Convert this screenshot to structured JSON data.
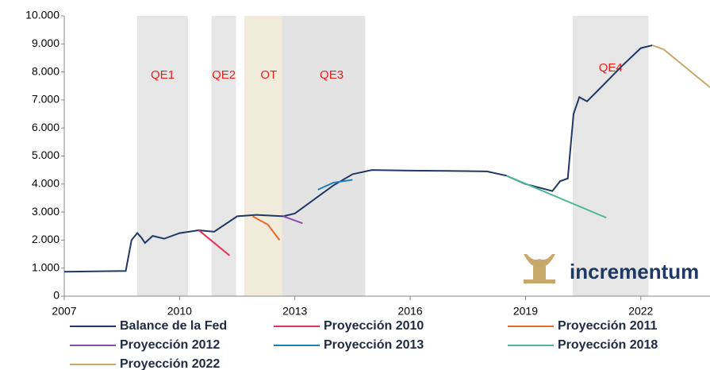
{
  "chart_data": {
    "type": "line",
    "xlim": [
      2007,
      2023.8
    ],
    "xticks": [
      2007,
      2010,
      2013,
      2016,
      2019,
      2022
    ],
    "ylim": [
      0,
      10000
    ],
    "yticks": [
      0,
      {
        "value": 1000,
        "label": "1.000"
      },
      {
        "value": 2000,
        "label": "2.000"
      },
      {
        "value": 3000,
        "label": "3.000"
      },
      {
        "value": 4000,
        "label": "4.000"
      },
      {
        "value": 5000,
        "label": "5.000"
      },
      {
        "value": 6000,
        "label": "6.000"
      },
      {
        "value": 7000,
        "label": "7.000"
      },
      {
        "value": 8000,
        "label": "8.000"
      },
      {
        "value": 9000,
        "label": "9.000"
      },
      {
        "value": 10000,
        "label": "10.000"
      }
    ],
    "regions": [
      {
        "label": "QE1",
        "start": 2008.9,
        "end": 2010.22,
        "color": "#e6e6e6"
      },
      {
        "label": "QE2",
        "start": 2010.83,
        "end": 2011.47,
        "color": "#e6e6e6"
      },
      {
        "label": "OT",
        "start": 2011.68,
        "end": 2012.96,
        "color": "#f1ebdc"
      },
      {
        "label": "QE3",
        "start": 2012.67,
        "end": 2014.83,
        "color": "#e3e3e3"
      },
      {
        "label": "QE4",
        "start": 2020.23,
        "end": 2022.2,
        "color": "#e6e6e6"
      }
    ],
    "series": [
      {
        "name": "Balance de la Fed",
        "color": "#1f3864",
        "x": [
          2007,
          2008.6,
          2008.75,
          2008.9,
          2009.0,
          2009.1,
          2009.3,
          2009.6,
          2010.0,
          2010.5,
          2010.9,
          2011.5,
          2012.0,
          2012.7,
          2013.0,
          2013.5,
          2014.0,
          2014.5,
          2015.0,
          2016,
          2017,
          2018,
          2018.5,
          2019.0,
          2019.7,
          2019.9,
          2020.1,
          2020.25,
          2020.4,
          2020.6,
          2021.0,
          2021.5,
          2022.0,
          2022.3
        ],
        "values": [
          870,
          900,
          2000,
          2250,
          2100,
          1900,
          2150,
          2050,
          2250,
          2350,
          2300,
          2850,
          2900,
          2850,
          2950,
          3450,
          3950,
          4350,
          4500,
          4480,
          4470,
          4450,
          4300,
          4000,
          3750,
          4100,
          4200,
          6500,
          7100,
          6950,
          7500,
          8200,
          8850,
          8950
        ]
      },
      {
        "name": "Proyección 2010",
        "color": "#e5335b",
        "x": [
          2010.5,
          2011.3
        ],
        "values": [
          2350,
          1450
        ]
      },
      {
        "name": "Proyección 2011",
        "color": "#e86a2a",
        "x": [
          2011.9,
          2012.3,
          2012.6
        ],
        "values": [
          2850,
          2550,
          2000
        ]
      },
      {
        "name": "Proyección 2012",
        "color": "#8a4fb0",
        "x": [
          2012.7,
          2013.2
        ],
        "values": [
          2850,
          2600
        ]
      },
      {
        "name": "Proyección 2013",
        "color": "#1b80c0",
        "x": [
          2013.6,
          2014.0,
          2014.5
        ],
        "values": [
          3800,
          4050,
          4150
        ]
      },
      {
        "name": "Proyección 2018",
        "color": "#4fb896",
        "x": [
          2018.5,
          2021.1
        ],
        "values": [
          4300,
          2800
        ]
      },
      {
        "name": "Proyección 2022",
        "color": "#c8a86a",
        "x": [
          2022.3,
          2022.6,
          2023.8
        ],
        "values": [
          8950,
          8800,
          7450
        ]
      }
    ],
    "logo": "incrementum"
  }
}
